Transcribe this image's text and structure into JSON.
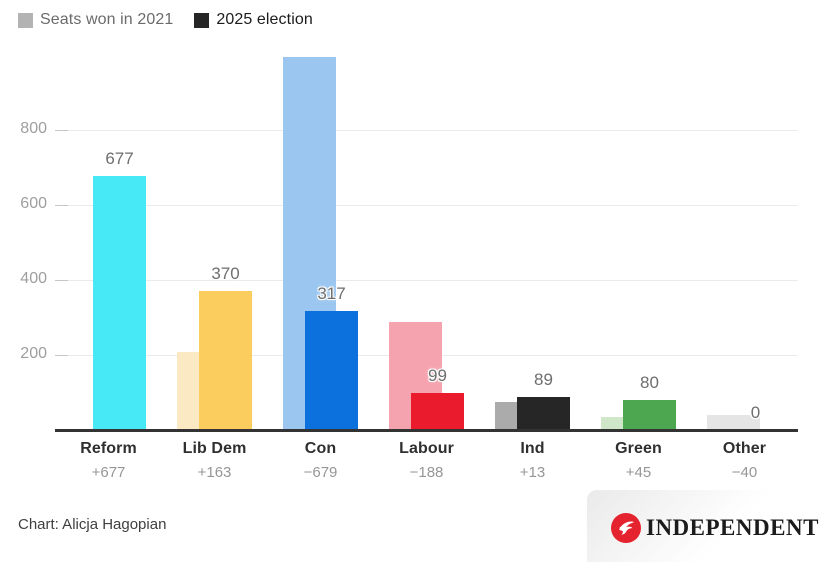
{
  "legend": {
    "items": [
      {
        "label": "Seats won in 2021",
        "swatch": "#b3b3b3"
      },
      {
        "label": "2025 election",
        "swatch": "#262626"
      }
    ]
  },
  "chart_data": {
    "type": "bar",
    "title": "",
    "categories": [
      "Reform",
      "Lib Dem",
      "Con",
      "Labour",
      "Ind",
      "Green",
      "Other"
    ],
    "series": [
      {
        "name": "Seats won in 2021",
        "values": [
          0,
          207,
          996,
          287,
          76,
          35,
          40
        ],
        "colors": [
          "#aef5fa",
          "#fae9c3",
          "#9ac6f0",
          "#f5a3ae",
          "#ababab",
          "#cfe6c8",
          "#e5e5e5"
        ]
      },
      {
        "name": "2025 election",
        "values": [
          677,
          370,
          317,
          99,
          89,
          80,
          0
        ],
        "colors": [
          "#47e9f6",
          "#fbcc5e",
          "#0c70dd",
          "#ea1b2d",
          "#262626",
          "#4ca750",
          "#dddddd"
        ]
      }
    ],
    "bar_labels": [
      "677",
      "370",
      "317",
      "99",
      "89",
      "80",
      "0"
    ],
    "change_labels": [
      "+677",
      "+163",
      "−679",
      "−188",
      "+13",
      "+45",
      "−40"
    ],
    "yticks": [
      200,
      400,
      600,
      800
    ],
    "ylim": [
      0,
      1000
    ],
    "grid": "horizontal",
    "legend_position": "top-left"
  },
  "footer": {
    "credit": "Chart: Alicja Hagopian",
    "logo_text": "INDEPENDENT",
    "logo_red": "#e4232e"
  }
}
